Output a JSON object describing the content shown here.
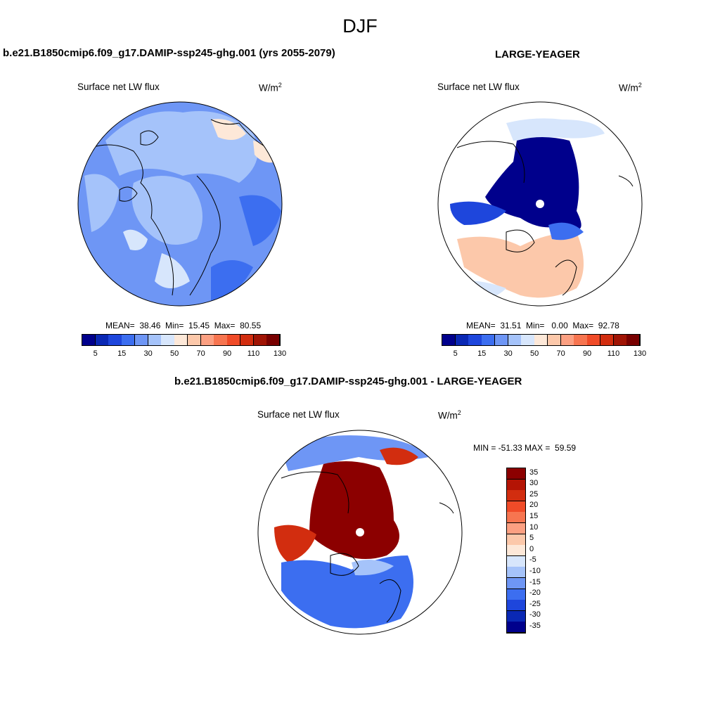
{
  "title": "DJF",
  "panel1": {
    "header": "b.e21.B1850cmip6.f09_g17.DAMIP-ssp245-ghg.001 (yrs 2055-2079)",
    "variable": "Surface net LW flux",
    "units": "W/m",
    "units_exp": "2",
    "stats": "MEAN=  38.46  Min=  15.45  Max=  80.55"
  },
  "panel2": {
    "header": "LARGE-YEAGER",
    "variable": "Surface net LW flux",
    "units": "W/m",
    "units_exp": "2",
    "stats": "MEAN=  31.51  Min=   0.00  Max=  92.78"
  },
  "panel3": {
    "header": "b.e21.B1850cmip6.f09_g17.DAMIP-ssp245-ghg.001 - LARGE-YEAGER",
    "variable": "Surface net LW flux",
    "units": "W/m",
    "units_exp": "2",
    "stats": "MIN = -51.33 MAX =  59.59"
  },
  "colorbar_h": {
    "tick_labels": [
      "5",
      "15",
      "30",
      "50",
      "70",
      "90",
      "110",
      "130"
    ],
    "colors": [
      "#00008c",
      "#0a28b4",
      "#1e46dc",
      "#3c6ef0",
      "#6e96f5",
      "#a5c3fa",
      "#d7e6fc",
      "#fde8d8",
      "#fcc8aa",
      "#fca082",
      "#f77550",
      "#f04b28",
      "#d22d0f",
      "#a01405",
      "#780000"
    ]
  },
  "colorbar_v": {
    "tick_labels": [
      "35",
      "30",
      "25",
      "20",
      "15",
      "10",
      "5",
      "0",
      "-5",
      "-10",
      "-15",
      "-20",
      "-25",
      "-30",
      "-35"
    ],
    "colors": [
      "#8c0000",
      "#b41405",
      "#d22d0f",
      "#f04b28",
      "#f77550",
      "#fca082",
      "#fcc8aa",
      "#fde8d8",
      "#d7e6fc",
      "#a5c3fa",
      "#6e96f5",
      "#3c6ef0",
      "#1e46dc",
      "#0a28b4",
      "#00008c"
    ]
  }
}
